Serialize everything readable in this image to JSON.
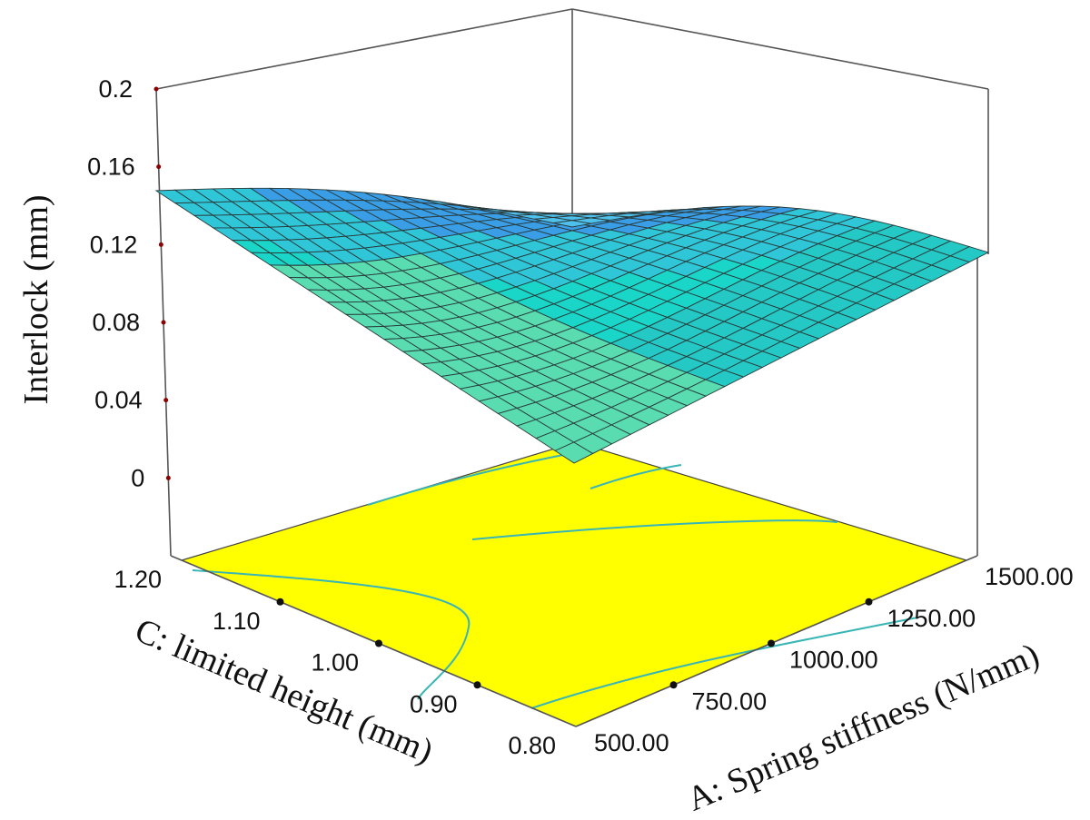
{
  "chart_data": {
    "type": "surface3d",
    "z_axis": {
      "title": "Interlock  (mm)",
      "ticks": [
        "0",
        "0.04",
        "0.08",
        "0.12",
        "0.16",
        "0.2"
      ],
      "range": [
        -0.04,
        0.2
      ]
    },
    "x_axis": {
      "title": "A: Spring stiffness (N/mm)",
      "ticks": [
        "500.00",
        "750.00",
        "1000.00",
        "1250.00",
        "1500.00"
      ],
      "range": [
        500,
        1500
      ]
    },
    "y_axis": {
      "title": "C: limited height (mm)",
      "ticks": [
        "0.80",
        "0.90",
        "1.00",
        "1.10",
        "1.20"
      ],
      "range": [
        0.8,
        1.2
      ]
    },
    "surface_corners": [
      {
        "A": 500,
        "C": 1.2,
        "interlock": 0.14
      },
      {
        "A": 1500,
        "C": 1.2,
        "interlock": 0.108
      },
      {
        "A": 1500,
        "C": 0.8,
        "interlock": 0.108
      },
      {
        "A": 500,
        "C": 0.8,
        "interlock": -0.003
      }
    ],
    "floor_contour_color": "#ffff00",
    "surface_colors": [
      "#00c8c8",
      "#3aa0e6",
      "#5adc9a"
    ]
  }
}
